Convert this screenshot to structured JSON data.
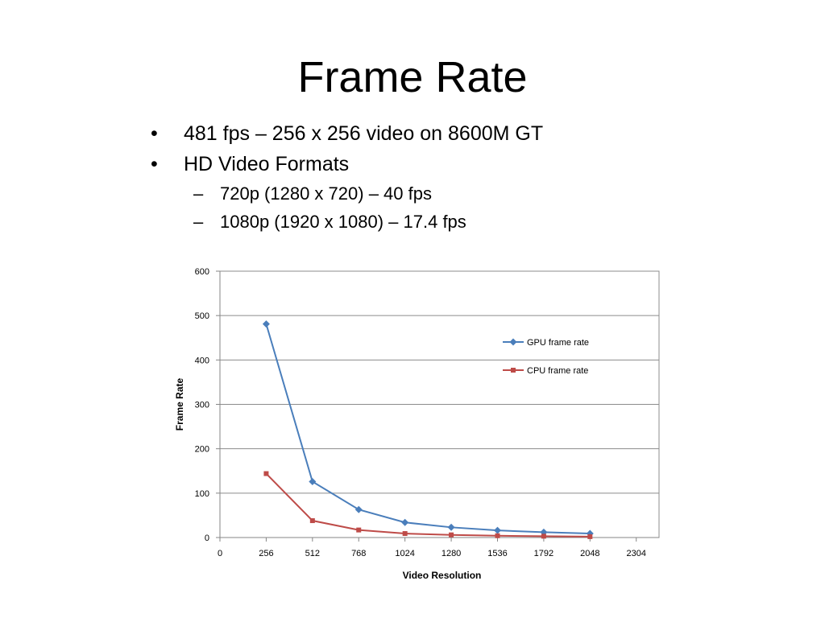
{
  "slide": {
    "title": "Frame Rate",
    "bullets": [
      {
        "text": "481 fps – 256 x 256 video on 8600M GT",
        "marker": "•"
      },
      {
        "text": "HD Video Formats",
        "marker": "•"
      }
    ],
    "sub_bullets": [
      {
        "text": "720p (1280 x 720) – 40 fps",
        "marker": "–"
      },
      {
        "text": "1080p (1920 x 1080) – 17.4 fps",
        "marker": "–"
      }
    ]
  },
  "chart_data": {
    "type": "line",
    "title": "",
    "xlabel": "Video Resolution",
    "ylabel": "Frame Rate",
    "xlim": [
      0,
      2430
    ],
    "ylim": [
      0,
      600
    ],
    "xticks": [
      0,
      256,
      512,
      768,
      1024,
      1280,
      1536,
      1792,
      2048,
      2304
    ],
    "yticks": [
      0,
      100,
      200,
      300,
      400,
      500,
      600
    ],
    "grid": "horizontal",
    "legend_position": "right",
    "series": [
      {
        "name": "GPU frame rate",
        "color": "#4a7ebb",
        "marker": "diamond",
        "x": [
          256,
          512,
          768,
          1024,
          1280,
          1536,
          1792,
          2048
        ],
        "y": [
          481,
          126,
          63,
          34,
          23,
          16,
          12,
          9
        ]
      },
      {
        "name": "CPU frame rate",
        "color": "#be4b48",
        "marker": "square",
        "x": [
          256,
          512,
          768,
          1024,
          1280,
          1536,
          1792,
          2048
        ],
        "y": [
          144,
          38,
          17,
          9,
          6,
          4,
          3,
          2
        ]
      }
    ]
  }
}
